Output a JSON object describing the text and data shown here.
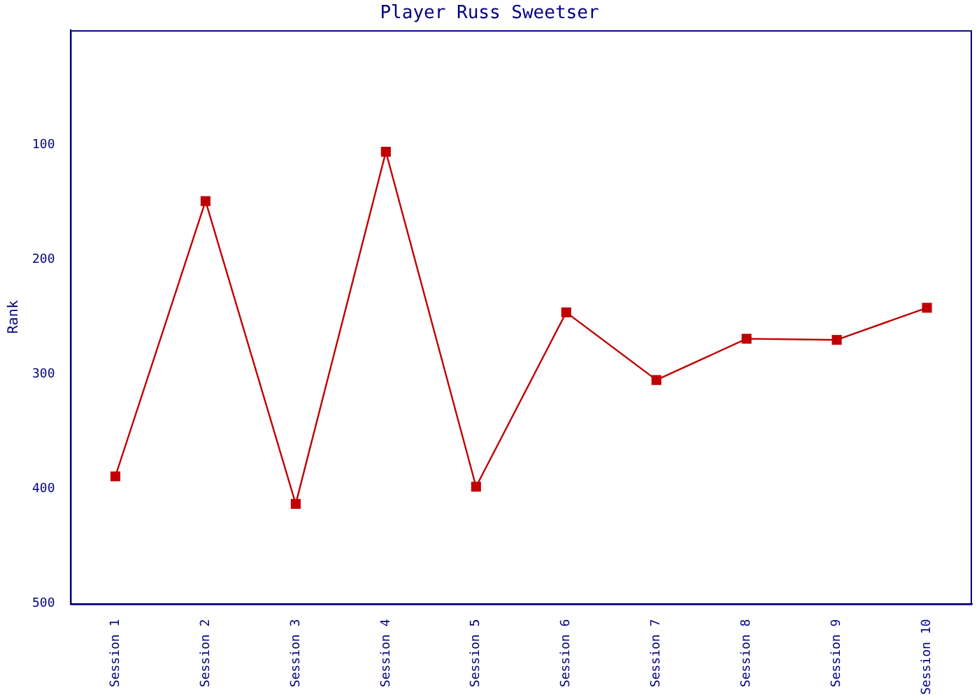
{
  "chart_data": {
    "type": "line",
    "title": "Player Russ Sweetser",
    "ylabel": "Rank",
    "categories": [
      "Session 1",
      "Session 2",
      "Session 3",
      "Session 4",
      "Session 5",
      "Session 6",
      "Session 7",
      "Session 8",
      "Session 9",
      "Session 10"
    ],
    "series": [
      {
        "color": "#c00000",
        "values": [
          389,
          149,
          413,
          106,
          398,
          246,
          305,
          269,
          270,
          242
        ]
      }
    ],
    "ylim": [
      500,
      0
    ],
    "yticks": [
      100,
      200,
      300,
      400,
      500
    ],
    "grid": false,
    "legend": false,
    "marker": "square",
    "line_style": "solid"
  }
}
